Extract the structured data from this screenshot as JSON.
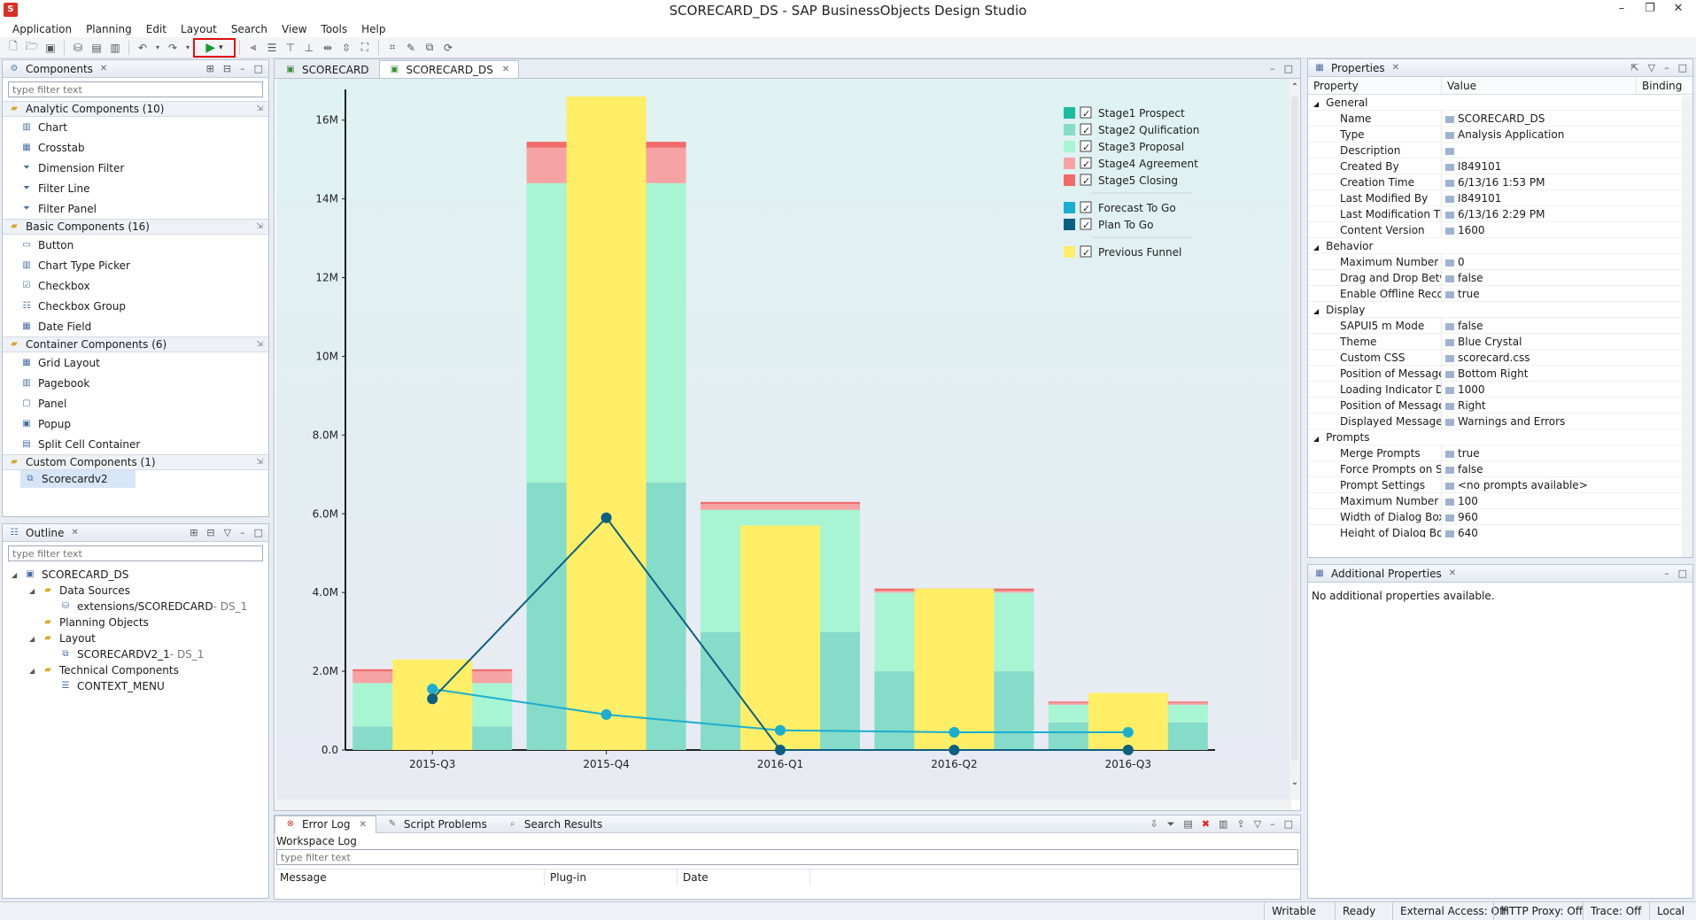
{
  "window": {
    "title": "SCORECARD_DS - SAP BusinessObjects Design Studio"
  },
  "menubar": [
    "Application",
    "Planning",
    "Edit",
    "Layout",
    "Search",
    "View",
    "Tools",
    "Help"
  ],
  "components_panel": {
    "title": "Components",
    "filter_placeholder": "type filter text",
    "categories": [
      {
        "label": "Analytic Components (10)",
        "items": [
          {
            "label": "Chart",
            "icon": "chart-icon"
          },
          {
            "label": "Crosstab",
            "icon": "crosstab-icon"
          },
          {
            "label": "Dimension Filter",
            "icon": "funnel-icon"
          },
          {
            "label": "Filter Line",
            "icon": "funnel-icon"
          },
          {
            "label": "Filter Panel",
            "icon": "funnel-icon"
          }
        ]
      },
      {
        "label": "Basic Components (16)",
        "items": [
          {
            "label": "Button",
            "icon": "button-icon"
          },
          {
            "label": "Chart Type Picker",
            "icon": "chart-icon"
          },
          {
            "label": "Checkbox",
            "icon": "checkbox-icon"
          },
          {
            "label": "Checkbox Group",
            "icon": "checkbox-group-icon"
          },
          {
            "label": "Date Field",
            "icon": "calendar-icon"
          }
        ]
      },
      {
        "label": "Container Components (6)",
        "items": [
          {
            "label": "Grid Layout",
            "icon": "grid-icon"
          },
          {
            "label": "Pagebook",
            "icon": "book-icon"
          },
          {
            "label": "Panel",
            "icon": "panel-icon"
          },
          {
            "label": "Popup",
            "icon": "popup-icon"
          },
          {
            "label": "Split Cell Container",
            "icon": "split-icon"
          }
        ]
      },
      {
        "label": "Custom Components (1)",
        "items": [
          {
            "label": "Scorecardv2",
            "icon": "custom-component-icon"
          }
        ]
      }
    ]
  },
  "outline_panel": {
    "title": "Outline",
    "filter_placeholder": "type filter text",
    "tree": [
      {
        "label": "SCORECARD_DS",
        "suffix": "",
        "indent": 0,
        "icon": "app-icon"
      },
      {
        "label": "Data Sources",
        "suffix": "",
        "indent": 1,
        "icon": "folder-icon"
      },
      {
        "label": "extensions/SCOREDCARD",
        "suffix": " - DS_1",
        "indent": 2,
        "icon": "datasource-icon"
      },
      {
        "label": "Planning Objects",
        "suffix": "",
        "indent": 1,
        "icon": "folder-icon"
      },
      {
        "label": "Layout",
        "suffix": "",
        "indent": 1,
        "icon": "folder-icon"
      },
      {
        "label": "SCORECARDV2_1",
        "suffix": " - DS_1",
        "indent": 2,
        "icon": "custom-component-icon"
      },
      {
        "label": "Technical Components",
        "suffix": "",
        "indent": 1,
        "icon": "folder-icon"
      },
      {
        "label": "CONTEXT_MENU",
        "suffix": "",
        "indent": 2,
        "icon": "menu-icon"
      }
    ]
  },
  "editor": {
    "tabs": [
      "SCORECARD",
      "SCORECARD_DS"
    ],
    "active_tab": 1
  },
  "chart_data": {
    "type": "bar",
    "categories": [
      "2015-Q3",
      "2015-Q4",
      "2016-Q1",
      "2016-Q2",
      "2016-Q3"
    ],
    "y_ticks": [
      "0.0",
      "2.0M",
      "4.0M",
      "6.0M",
      "8.0M",
      "10M",
      "12M",
      "14M",
      "16M"
    ],
    "ylim": [
      0,
      16.6
    ],
    "stages": [
      {
        "name": "Stage1 Prospect",
        "color": "#1bbc9b",
        "values": [
          0,
          0,
          0,
          0,
          0
        ]
      },
      {
        "name": "Stage2 Qulification",
        "color": "#85dcc9",
        "values": [
          0.6,
          6.8,
          3.0,
          2.0,
          0.7
        ]
      },
      {
        "name": "Stage3 Proposal",
        "color": "#a8f5d4",
        "values": [
          1.1,
          7.6,
          3.1,
          2.0,
          0.45
        ]
      },
      {
        "name": "Stage4 Agreement",
        "color": "#f7a3a3",
        "values": [
          0.3,
          0.9,
          0.15,
          0.05,
          0.05
        ]
      },
      {
        "name": "Stage5 Closing",
        "color": "#f26a6a",
        "values": [
          0.05,
          0.15,
          0.05,
          0.05,
          0.03
        ]
      }
    ],
    "previous_funnel": {
      "name": "Previous Funnel",
      "color": "#ffee66",
      "values": [
        2.3,
        16.6,
        5.7,
        4.1,
        1.45
      ]
    },
    "lines": [
      {
        "name": "Forecast To Go",
        "color": "#1aaed0",
        "values": [
          1.55,
          0.9,
          0.5,
          0.45,
          0.45
        ]
      },
      {
        "name": "Plan To Go",
        "color": "#0d5f82",
        "values": [
          1.3,
          5.9,
          0,
          0,
          0
        ]
      }
    ]
  },
  "properties": {
    "title": "Properties",
    "columns": [
      "Property",
      "Value",
      "Binding"
    ],
    "rows": [
      {
        "group": "General"
      },
      {
        "name": "Name",
        "value": "SCORECARD_DS"
      },
      {
        "name": "Type",
        "value": "Analysis Application"
      },
      {
        "name": "Description",
        "value": ""
      },
      {
        "name": "Created By",
        "value": "I849101"
      },
      {
        "name": "Creation Time",
        "value": "6/13/16 1:53 PM"
      },
      {
        "name": "Last Modified By",
        "value": "I849101"
      },
      {
        "name": "Last Modification Ti",
        "value": "6/13/16 2:29 PM"
      },
      {
        "name": "Content Version",
        "value": "1600"
      },
      {
        "group": "Behavior"
      },
      {
        "name": "Maximum Number o",
        "value": "0"
      },
      {
        "name": "Drag and Drop Betw",
        "value": "false"
      },
      {
        "name": "Enable Offline Recor",
        "value": "true"
      },
      {
        "group": "Display"
      },
      {
        "name": "SAPUI5 m Mode",
        "value": "false"
      },
      {
        "name": "Theme",
        "value": "Blue Crystal"
      },
      {
        "name": "Custom CSS",
        "value": "scorecard.css"
      },
      {
        "name": "Position of Message",
        "value": "Bottom Right"
      },
      {
        "name": "Loading Indicator De",
        "value": "1000"
      },
      {
        "name": "Position of Message",
        "value": "Right"
      },
      {
        "name": "Displayed Message T",
        "value": "Warnings and Errors"
      },
      {
        "group": "Prompts"
      },
      {
        "name": "Merge Prompts",
        "value": "true"
      },
      {
        "name": "Force Prompts on St",
        "value": "false"
      },
      {
        "name": "Prompt Settings",
        "value": "<no prompts available>"
      },
      {
        "name": "Maximum Number o",
        "value": "100"
      },
      {
        "name": "Width of Dialog Box",
        "value": "960"
      },
      {
        "name": "Height of Dialog Bo",
        "value": "640"
      }
    ]
  },
  "additional_properties": {
    "title": "Additional Properties",
    "message": "No additional properties available."
  },
  "bottom_panel": {
    "tabs": [
      "Error Log",
      "Script Problems",
      "Search Results"
    ],
    "subtitle": "Workspace Log",
    "filter_placeholder": "type filter text",
    "columns": [
      "Message",
      "Plug-in",
      "Date"
    ]
  },
  "statusbar": [
    "Writable",
    "Ready",
    "External Access: Off",
    "HTTP Proxy: Off",
    "Trace: Off",
    "Local"
  ]
}
